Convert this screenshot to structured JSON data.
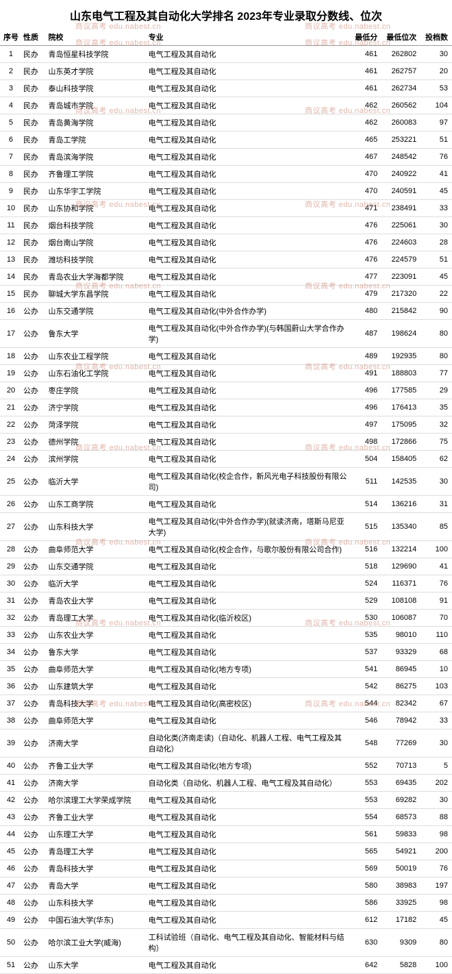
{
  "title": "山东电气工程及其自动化大学排名 2023年专业录取分数线、位次",
  "headers": {
    "rank": "序号",
    "type": "性质",
    "school": "院校",
    "major": "专业",
    "score": "最低分",
    "pos": "最低位次",
    "cnt": "投档数"
  },
  "watermark": "商议高考 edu.nabest.cn",
  "rows": [
    {
      "rank": 1,
      "type": "民办",
      "school": "青岛恒星科技学院",
      "major": "电气工程及其自动化",
      "score": 461,
      "pos": 262802,
      "cnt": 30
    },
    {
      "rank": 2,
      "type": "民办",
      "school": "山东英才学院",
      "major": "电气工程及其自动化",
      "score": 461,
      "pos": 262757,
      "cnt": 20
    },
    {
      "rank": 3,
      "type": "民办",
      "school": "泰山科技学院",
      "major": "电气工程及其自动化",
      "score": 461,
      "pos": 262734,
      "cnt": 53
    },
    {
      "rank": 4,
      "type": "民办",
      "school": "青岛城市学院",
      "major": "电气工程及其自动化",
      "score": 462,
      "pos": 260562,
      "cnt": 104
    },
    {
      "rank": 5,
      "type": "民办",
      "school": "青岛黄海学院",
      "major": "电气工程及其自动化",
      "score": 462,
      "pos": 260083,
      "cnt": 97
    },
    {
      "rank": 6,
      "type": "民办",
      "school": "青岛工学院",
      "major": "电气工程及其自动化",
      "score": 465,
      "pos": 253221,
      "cnt": 51
    },
    {
      "rank": 7,
      "type": "民办",
      "school": "青岛滨海学院",
      "major": "电气工程及其自动化",
      "score": 467,
      "pos": 248542,
      "cnt": 76
    },
    {
      "rank": 8,
      "type": "民办",
      "school": "齐鲁理工学院",
      "major": "电气工程及其自动化",
      "score": 470,
      "pos": 240922,
      "cnt": 41
    },
    {
      "rank": 9,
      "type": "民办",
      "school": "山东华宇工学院",
      "major": "电气工程及其自动化",
      "score": 470,
      "pos": 240591,
      "cnt": 45
    },
    {
      "rank": 10,
      "type": "民办",
      "school": "山东协和学院",
      "major": "电气工程及其自动化",
      "score": 471,
      "pos": 238491,
      "cnt": 33
    },
    {
      "rank": 11,
      "type": "民办",
      "school": "烟台科技学院",
      "major": "电气工程及其自动化",
      "score": 476,
      "pos": 225061,
      "cnt": 30
    },
    {
      "rank": 12,
      "type": "民办",
      "school": "烟台南山学院",
      "major": "电气工程及其自动化",
      "score": 476,
      "pos": 224603,
      "cnt": 28
    },
    {
      "rank": 13,
      "type": "民办",
      "school": "潍坊科技学院",
      "major": "电气工程及其自动化",
      "score": 476,
      "pos": 224579,
      "cnt": 51
    },
    {
      "rank": 14,
      "type": "民办",
      "school": "青岛农业大学海都学院",
      "major": "电气工程及其自动化",
      "score": 477,
      "pos": 223091,
      "cnt": 45
    },
    {
      "rank": 15,
      "type": "民办",
      "school": "聊城大学东昌学院",
      "major": "电气工程及其自动化",
      "score": 479,
      "pos": 217320,
      "cnt": 22
    },
    {
      "rank": 16,
      "type": "公办",
      "school": "山东交通学院",
      "major": "电气工程及其自动化(中外合作办学)",
      "score": 480,
      "pos": 215842,
      "cnt": 90
    },
    {
      "rank": 17,
      "type": "公办",
      "school": "鲁东大学",
      "major": "电气工程及其自动化(中外合作办学)(与韩国蔚山大学合作办学)",
      "score": 487,
      "pos": 198624,
      "cnt": 80
    },
    {
      "rank": 18,
      "type": "公办",
      "school": "山东农业工程学院",
      "major": "电气工程及其自动化",
      "score": 489,
      "pos": 192935,
      "cnt": 80
    },
    {
      "rank": 19,
      "type": "公办",
      "school": "山东石油化工学院",
      "major": "电气工程及其自动化",
      "score": 491,
      "pos": 188803,
      "cnt": 77
    },
    {
      "rank": 20,
      "type": "公办",
      "school": "枣庄学院",
      "major": "电气工程及其自动化",
      "score": 496,
      "pos": 177585,
      "cnt": 29
    },
    {
      "rank": 21,
      "type": "公办",
      "school": "济宁学院",
      "major": "电气工程及其自动化",
      "score": 496,
      "pos": 176413,
      "cnt": 35
    },
    {
      "rank": 22,
      "type": "公办",
      "school": "菏泽学院",
      "major": "电气工程及其自动化",
      "score": 497,
      "pos": 175095,
      "cnt": 32
    },
    {
      "rank": 23,
      "type": "公办",
      "school": "德州学院",
      "major": "电气工程及其自动化",
      "score": 498,
      "pos": 172866,
      "cnt": 75
    },
    {
      "rank": 24,
      "type": "公办",
      "school": "滨州学院",
      "major": "电气工程及其自动化",
      "score": 504,
      "pos": 158405,
      "cnt": 62
    },
    {
      "rank": 25,
      "type": "公办",
      "school": "临沂大学",
      "major": "电气工程及其自动化(校企合作，新风光电子科技股份有限公司)",
      "score": 511,
      "pos": 142535,
      "cnt": 30
    },
    {
      "rank": 26,
      "type": "公办",
      "school": "山东工商学院",
      "major": "电气工程及其自动化",
      "score": 514,
      "pos": 136216,
      "cnt": 31
    },
    {
      "rank": 27,
      "type": "公办",
      "school": "山东科技大学",
      "major": "电气工程及其自动化(中外合作办学)(就读济南，塔斯马尼亚大学)",
      "score": 515,
      "pos": 135340,
      "cnt": 85
    },
    {
      "rank": 28,
      "type": "公办",
      "school": "曲阜师范大学",
      "major": "电气工程及其自动化(校企合作，与歌尔股份有限公司合作)",
      "score": 516,
      "pos": 132214,
      "cnt": 100
    },
    {
      "rank": 29,
      "type": "公办",
      "school": "山东交通学院",
      "major": "电气工程及其自动化",
      "score": 518,
      "pos": 129690,
      "cnt": 41
    },
    {
      "rank": 30,
      "type": "公办",
      "school": "临沂大学",
      "major": "电气工程及其自动化",
      "score": 524,
      "pos": 116371,
      "cnt": 76
    },
    {
      "rank": 31,
      "type": "公办",
      "school": "青岛农业大学",
      "major": "电气工程及其自动化",
      "score": 529,
      "pos": 108108,
      "cnt": 91
    },
    {
      "rank": 32,
      "type": "公办",
      "school": "青岛理工大学",
      "major": "电气工程及其自动化(临沂校区)",
      "score": 530,
      "pos": 106087,
      "cnt": 70
    },
    {
      "rank": 33,
      "type": "公办",
      "school": "山东农业大学",
      "major": "电气工程及其自动化",
      "score": 535,
      "pos": 98010,
      "cnt": 110
    },
    {
      "rank": 34,
      "type": "公办",
      "school": "鲁东大学",
      "major": "电气工程及其自动化",
      "score": 537,
      "pos": 93329,
      "cnt": 68
    },
    {
      "rank": 35,
      "type": "公办",
      "school": "曲阜师范大学",
      "major": "电气工程及其自动化(地方专项)",
      "score": 541,
      "pos": 86945,
      "cnt": 10
    },
    {
      "rank": 36,
      "type": "公办",
      "school": "山东建筑大学",
      "major": "电气工程及其自动化",
      "score": 542,
      "pos": 86275,
      "cnt": 103
    },
    {
      "rank": 37,
      "type": "公办",
      "school": "青岛科技大学",
      "major": "电气工程及其自动化(高密校区)",
      "score": 544,
      "pos": 82342,
      "cnt": 67
    },
    {
      "rank": 38,
      "type": "公办",
      "school": "曲阜师范大学",
      "major": "电气工程及其自动化",
      "score": 546,
      "pos": 78942,
      "cnt": 33
    },
    {
      "rank": 39,
      "type": "公办",
      "school": "济南大学",
      "major": "自动化类(济南走读)（自动化、机器人工程、电气工程及其自动化）",
      "score": 548,
      "pos": 77269,
      "cnt": 30
    },
    {
      "rank": 40,
      "type": "公办",
      "school": "齐鲁工业大学",
      "major": "电气工程及其自动化(地方专项)",
      "score": 552,
      "pos": 70713,
      "cnt": 5
    },
    {
      "rank": 41,
      "type": "公办",
      "school": "济南大学",
      "major": "自动化类（自动化、机器人工程、电气工程及其自动化）",
      "score": 553,
      "pos": 69435,
      "cnt": 202
    },
    {
      "rank": 42,
      "type": "公办",
      "school": "哈尔滨理工大学荣成学院",
      "major": "电气工程及其自动化",
      "score": 553,
      "pos": 69282,
      "cnt": 30
    },
    {
      "rank": 43,
      "type": "公办",
      "school": "齐鲁工业大学",
      "major": "电气工程及其自动化",
      "score": 554,
      "pos": 68573,
      "cnt": 88
    },
    {
      "rank": 44,
      "type": "公办",
      "school": "山东理工大学",
      "major": "电气工程及其自动化",
      "score": 561,
      "pos": 59833,
      "cnt": 98
    },
    {
      "rank": 45,
      "type": "公办",
      "school": "青岛理工大学",
      "major": "电气工程及其自动化",
      "score": 565,
      "pos": 54921,
      "cnt": 200
    },
    {
      "rank": 46,
      "type": "公办",
      "school": "青岛科技大学",
      "major": "电气工程及其自动化",
      "score": 569,
      "pos": 50019,
      "cnt": 76
    },
    {
      "rank": 47,
      "type": "公办",
      "school": "青岛大学",
      "major": "电气工程及其自动化",
      "score": 580,
      "pos": 38983,
      "cnt": 197
    },
    {
      "rank": 48,
      "type": "公办",
      "school": "山东科技大学",
      "major": "电气工程及其自动化",
      "score": 586,
      "pos": 33925,
      "cnt": 98
    },
    {
      "rank": 49,
      "type": "公办",
      "school": "中国石油大学(华东)",
      "major": "电气工程及其自动化",
      "score": 612,
      "pos": 17182,
      "cnt": 45
    },
    {
      "rank": 50,
      "type": "公办",
      "school": "哈尔滨工业大学(威海)",
      "major": "工科试验班（自动化、电气工程及其自动化、智能材料与结构）",
      "score": 630,
      "pos": 9309,
      "cnt": 80
    },
    {
      "rank": 51,
      "type": "公办",
      "school": "山东大学",
      "major": "电气工程及其自动化",
      "score": 642,
      "pos": 5828,
      "cnt": 100
    }
  ],
  "watermark_rows": [
    0,
    5,
    12,
    18,
    24,
    30,
    37,
    43,
    49
  ],
  "colors": {
    "text": "#000000",
    "border_header": "#999999",
    "border_row": "#dddddd",
    "watermark": "rgba(200,120,100,0.55)",
    "background": "#ffffff"
  }
}
